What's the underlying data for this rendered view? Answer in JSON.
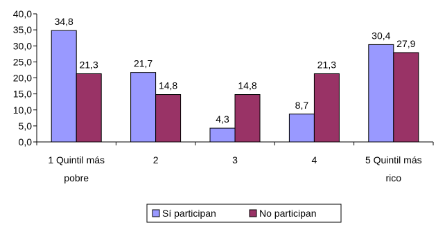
{
  "chart_data": {
    "type": "bar",
    "categories": [
      [
        "1 Quintil más",
        "pobre"
      ],
      [
        "2"
      ],
      [
        "3"
      ],
      [
        "4"
      ],
      [
        "5 Quintil más",
        "rico"
      ]
    ],
    "series": [
      {
        "name": "Sí participan",
        "values": [
          34.8,
          21.7,
          4.3,
          8.7,
          30.4
        ],
        "value_labels": [
          "34,8",
          "21,7",
          "4,3",
          "8,7",
          "30,4"
        ],
        "color": "#9999FF"
      },
      {
        "name": "No participan",
        "values": [
          21.3,
          14.8,
          14.8,
          21.3,
          27.9
        ],
        "value_labels": [
          "21,3",
          "14,8",
          "14,8",
          "21,3",
          "27,9"
        ],
        "color": "#993366"
      }
    ],
    "ylim": [
      0,
      40
    ],
    "yticks": [
      0,
      5,
      10,
      15,
      20,
      25,
      30,
      35,
      40
    ],
    "ytick_labels": [
      "0,0",
      "5,0",
      "10,0",
      "15,0",
      "20,0",
      "25,0",
      "30,0",
      "35,0",
      "40,0"
    ],
    "grid": false,
    "legend_position": "bottom-center"
  }
}
